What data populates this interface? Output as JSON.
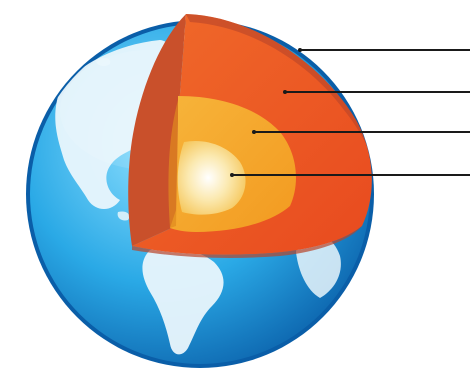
{
  "diagram": {
    "layers": [
      {
        "id": "crust",
        "color": "#c9502b"
      },
      {
        "id": "mantle",
        "color": "#ec5a26"
      },
      {
        "id": "outer-core",
        "color": "#f5a623"
      },
      {
        "id": "inner-core",
        "color": "#fbe7a0"
      }
    ],
    "label_lines": 4,
    "colors": {
      "ocean": "#2aa9e6",
      "ocean_dark": "#0a6fb5",
      "land": "#e9f6fc",
      "leader_line": "#1a1a1a"
    }
  }
}
